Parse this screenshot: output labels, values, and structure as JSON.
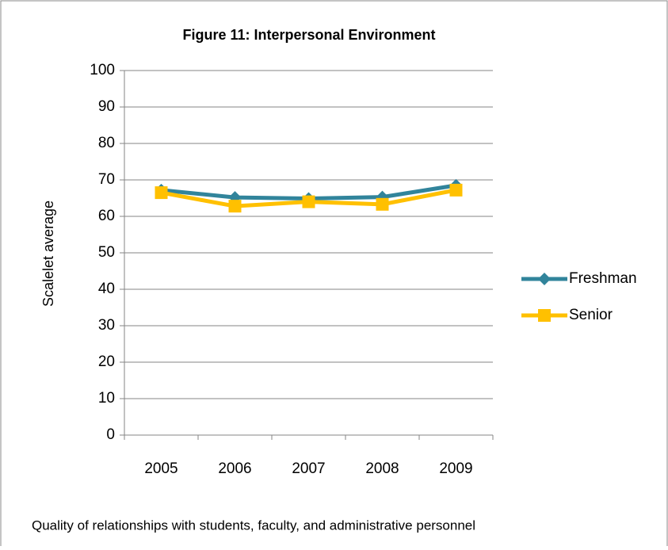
{
  "chart_data": {
    "type": "line",
    "title": "Figure 11: Interpersonal Environment",
    "y_label": "Scalelet average",
    "caption": "Quality of relationships with students, faculty, and administrative personnel",
    "categories": [
      "2005",
      "2006",
      "2007",
      "2008",
      "2009"
    ],
    "series": [
      {
        "name": "Freshman",
        "color": "#31849b",
        "marker": "diamond",
        "values": [
          67.2,
          65.2,
          64.9,
          65.3,
          68.5
        ]
      },
      {
        "name": "Senior",
        "color": "#ffc000",
        "marker": "square",
        "values": [
          66.5,
          62.8,
          64.0,
          63.3,
          67.2
        ]
      }
    ],
    "ylim": [
      0,
      100
    ],
    "yticks": [
      0,
      10,
      20,
      30,
      40,
      50,
      60,
      70,
      80,
      90,
      100
    ],
    "grid": true,
    "legend": "right"
  }
}
